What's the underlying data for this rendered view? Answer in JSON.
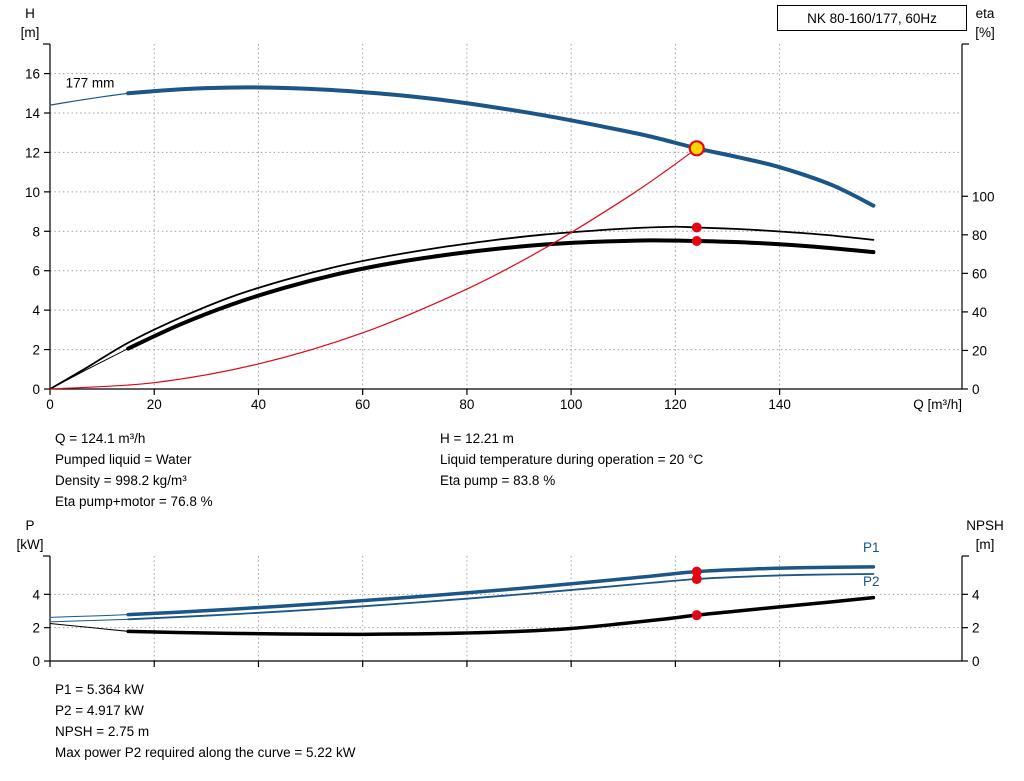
{
  "operating_point": {
    "Q": 124.1,
    "H": 12.21,
    "eta_pump": 83.8,
    "eta_pump_motor": 76.8,
    "P1": 5.364,
    "P2": 4.917,
    "NPSH": 2.75
  },
  "info_top": {
    "left": [
      "Q = 124.1 m³/h",
      "Pumped liquid = Water",
      "Density = 998.2 kg/m³",
      "Eta pump+motor = 76.8 %"
    ],
    "right": [
      "H = 12.21 m",
      "Liquid temperature during operation = 20 °C",
      "Eta pump = 83.8 %"
    ]
  },
  "info_bottom": [
    "P1 = 5.364 kW",
    "P2 = 4.917 kW",
    "NPSH = 2.75 m",
    "Max power P2 required along the curve = 5.22 kW"
  ],
  "chart_data": [
    {
      "id": "head-eta-chart",
      "type": "line",
      "title": "NK 80-160/177, 60Hz",
      "x_axis": {
        "min": 0,
        "max": 175,
        "ticks": [
          0,
          20,
          40,
          60,
          80,
          100,
          120,
          140
        ],
        "label": "Q [m³/h]",
        "show_tick_labels": true
      },
      "y_left": {
        "min": 0,
        "max": 17.5,
        "ticks": [
          0,
          2,
          4,
          6,
          8,
          10,
          12,
          14,
          16
        ],
        "label": [
          "H",
          "[m]"
        ]
      },
      "y_right": {
        "min": 0,
        "max": 179,
        "ticks": [
          0,
          20,
          40,
          60,
          80,
          100
        ],
        "label": [
          "eta",
          "[%]"
        ]
      },
      "series": [
        {
          "name": "head-curve-lead",
          "axis": "left",
          "color": "#1c5687",
          "width": 1.2,
          "points": [
            [
              0,
              14.4
            ],
            [
              5,
              14.62
            ],
            [
              10,
              14.82
            ],
            [
              15,
              15.0
            ]
          ]
        },
        {
          "name": "head-curve-177mm",
          "axis": "left",
          "color": "#1c5687",
          "width": 4,
          "points": [
            [
              15,
              15.0
            ],
            [
              22,
              15.15
            ],
            [
              30,
              15.26
            ],
            [
              38,
              15.3
            ],
            [
              46,
              15.26
            ],
            [
              55,
              15.15
            ],
            [
              65,
              14.95
            ],
            [
              75,
              14.67
            ],
            [
              85,
              14.3
            ],
            [
              95,
              13.87
            ],
            [
              105,
              13.37
            ],
            [
              115,
              12.82
            ],
            [
              124.1,
              12.21
            ],
            [
              132,
              11.76
            ],
            [
              140,
              11.25
            ],
            [
              150,
              10.35
            ],
            [
              158,
              9.3
            ]
          ]
        },
        {
          "name": "eta-pump-curve",
          "axis": "right",
          "color": "#000000",
          "width": 1.8,
          "points": [
            [
              0,
              0
            ],
            [
              7,
              11
            ],
            [
              15,
              24
            ],
            [
              25,
              37
            ],
            [
              35,
              48
            ],
            [
              45,
              56.5
            ],
            [
              55,
              63.5
            ],
            [
              65,
              69
            ],
            [
              75,
              73.5
            ],
            [
              85,
              77.2
            ],
            [
              95,
              80.2
            ],
            [
              105,
              82.3
            ],
            [
              113,
              83.6
            ],
            [
              120,
              84.2
            ],
            [
              124.1,
              83.8
            ],
            [
              132,
              83
            ],
            [
              140,
              81.7
            ],
            [
              149,
              79.9
            ],
            [
              158,
              77.4
            ]
          ]
        },
        {
          "name": "eta-pump-motor-lead",
          "axis": "right",
          "color": "#000000",
          "width": 1,
          "points": [
            [
              0,
              0
            ],
            [
              7,
              10
            ],
            [
              15,
              21
            ]
          ]
        },
        {
          "name": "eta-pump-motor-curve",
          "axis": "right",
          "color": "#000000",
          "width": 4,
          "points": [
            [
              15,
              21
            ],
            [
              25,
              33.5
            ],
            [
              35,
              44
            ],
            [
              45,
              52.5
            ],
            [
              55,
              59.5
            ],
            [
              65,
              65
            ],
            [
              75,
              69.2
            ],
            [
              85,
              72.5
            ],
            [
              95,
              75
            ],
            [
              105,
              76.4
            ],
            [
              115,
              77.1
            ],
            [
              124.1,
              76.8
            ],
            [
              132,
              76.2
            ],
            [
              140,
              75.1
            ],
            [
              149,
              73.3
            ],
            [
              158,
              71
            ]
          ]
        },
        {
          "name": "system-curve",
          "axis": "left",
          "color": "#e30613",
          "width": 1.2,
          "points": [
            [
              0,
              0
            ],
            [
              20,
              0.32
            ],
            [
              40,
              1.27
            ],
            [
              60,
              2.85
            ],
            [
              80,
              5.07
            ],
            [
              95,
              7.15
            ],
            [
              110,
              9.59
            ],
            [
              118,
              11.03
            ],
            [
              124.1,
              12.21
            ]
          ]
        }
      ],
      "markers": [
        {
          "name": "operating-point-marker",
          "axis": "left",
          "x": 124.1,
          "y": 12.21,
          "r": 7,
          "fill": "#ffd500",
          "stroke": "#e30613",
          "stroke_width": 2.2,
          "interactable": true
        },
        {
          "name": "eta-pump-duty-dot",
          "axis": "right",
          "x": 124.1,
          "y": 83.8,
          "r": 5,
          "fill": "#e30613"
        },
        {
          "name": "eta-pump-motor-duty-dot",
          "axis": "right",
          "x": 124.1,
          "y": 76.8,
          "r": 5,
          "fill": "#e30613"
        }
      ],
      "annotations": [
        {
          "name": "impeller-diameter-label",
          "text": "177 mm",
          "x": 3,
          "y": 15.3,
          "axis": "left",
          "color": "#000000",
          "anchor": "start"
        }
      ]
    },
    {
      "id": "power-npsh-chart",
      "type": "line",
      "title": "",
      "x_axis": {
        "min": 0,
        "max": 175,
        "ticks": [
          0,
          20,
          40,
          60,
          80,
          100,
          120,
          140
        ],
        "label": "",
        "show_tick_labels": false
      },
      "y_left": {
        "min": 0,
        "max": 6.3,
        "ticks": [
          0,
          2,
          4
        ],
        "label": [
          "P",
          "[kW]"
        ]
      },
      "y_right": {
        "min": 0,
        "max": 6.3,
        "ticks": [
          0,
          2,
          4
        ],
        "label": [
          "NPSH",
          "[m]"
        ]
      },
      "series": [
        {
          "name": "p1-curve-lead",
          "axis": "left",
          "color": "#1c5687",
          "width": 1,
          "points": [
            [
              0,
              2.62
            ],
            [
              8,
              2.7
            ],
            [
              15,
              2.78
            ]
          ]
        },
        {
          "name": "p1-curve",
          "axis": "left",
          "color": "#1c5687",
          "width": 3.5,
          "points": [
            [
              15,
              2.78
            ],
            [
              30,
              3.02
            ],
            [
              45,
              3.3
            ],
            [
              60,
              3.62
            ],
            [
              75,
              3.97
            ],
            [
              90,
              4.35
            ],
            [
              105,
              4.78
            ],
            [
              115,
              5.08
            ],
            [
              124.1,
              5.36
            ],
            [
              135,
              5.52
            ],
            [
              145,
              5.6
            ],
            [
              158,
              5.65
            ]
          ]
        },
        {
          "name": "p2-curve-lead",
          "axis": "left",
          "color": "#1c5687",
          "width": 1,
          "points": [
            [
              0,
              2.35
            ],
            [
              8,
              2.43
            ],
            [
              15,
              2.5
            ]
          ]
        },
        {
          "name": "p2-curve",
          "axis": "left",
          "color": "#1c5687",
          "width": 1.8,
          "points": [
            [
              15,
              2.5
            ],
            [
              30,
              2.72
            ],
            [
              45,
              2.98
            ],
            [
              60,
              3.28
            ],
            [
              75,
              3.62
            ],
            [
              90,
              3.99
            ],
            [
              105,
              4.4
            ],
            [
              115,
              4.68
            ],
            [
              124.1,
              4.92
            ],
            [
              135,
              5.08
            ],
            [
              145,
              5.17
            ],
            [
              158,
              5.22
            ]
          ]
        },
        {
          "name": "npsh-curve-lead",
          "axis": "right",
          "color": "#000000",
          "width": 1,
          "points": [
            [
              0,
              2.25
            ],
            [
              8,
              2.0
            ],
            [
              15,
              1.78
            ]
          ]
        },
        {
          "name": "npsh-curve",
          "axis": "right",
          "color": "#000000",
          "width": 3.5,
          "points": [
            [
              15,
              1.78
            ],
            [
              30,
              1.68
            ],
            [
              45,
              1.62
            ],
            [
              60,
              1.6
            ],
            [
              75,
              1.65
            ],
            [
              90,
              1.78
            ],
            [
              100,
              1.95
            ],
            [
              110,
              2.25
            ],
            [
              118,
              2.52
            ],
            [
              124.1,
              2.75
            ],
            [
              132,
              3.0
            ],
            [
              140,
              3.25
            ],
            [
              150,
              3.55
            ],
            [
              158,
              3.8
            ]
          ]
        }
      ],
      "markers": [
        {
          "name": "p1-duty-dot",
          "axis": "left",
          "x": 124.1,
          "y": 5.364,
          "r": 5,
          "fill": "#e30613"
        },
        {
          "name": "p2-duty-dot",
          "axis": "left",
          "x": 124.1,
          "y": 4.917,
          "r": 5,
          "fill": "#e30613"
        },
        {
          "name": "npsh-duty-dot",
          "axis": "right",
          "x": 124.1,
          "y": 2.75,
          "r": 5,
          "fill": "#e30613"
        }
      ],
      "annotations": [
        {
          "name": "p1-label",
          "text": "P1",
          "x": 156,
          "y": 6.55,
          "axis": "left",
          "color": "#1c5687",
          "anchor": "start"
        },
        {
          "name": "p2-label",
          "text": "P2",
          "x": 156,
          "y": 4.5,
          "axis": "left",
          "color": "#1c5687",
          "anchor": "start"
        }
      ]
    }
  ]
}
